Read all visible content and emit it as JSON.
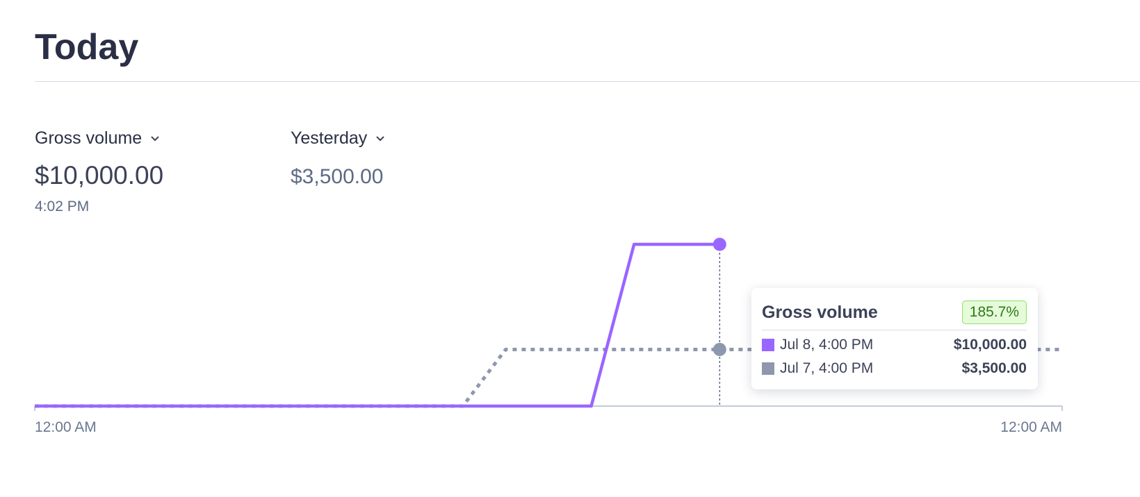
{
  "header": {
    "title": "Today"
  },
  "metrics": [
    {
      "label": "Gross volume",
      "value": "$10,000.00",
      "time": "4:02 PM"
    },
    {
      "label": "Yesterday",
      "value": "$3,500.00"
    }
  ],
  "chart_data": {
    "type": "line",
    "xlim": [
      0,
      24
    ],
    "xticks": [
      {
        "value": 0,
        "label": "12:00 AM"
      },
      {
        "value": 24,
        "label": "12:00 AM"
      }
    ],
    "ylim": [
      0,
      10000
    ],
    "hover_x": 16,
    "series": [
      {
        "color": "#9966ff",
        "style": "solid",
        "x": [
          0,
          13,
          14,
          16
        ],
        "values": [
          0,
          0,
          10000,
          10000
        ]
      },
      {
        "color": "#8d97ad",
        "style": "dotted",
        "x": [
          0,
          10,
          11,
          24
        ],
        "values": [
          0,
          0,
          3500,
          3500
        ]
      }
    ],
    "tooltip": {
      "title": "Gross volume",
      "change": "185.7%",
      "rows": [
        {
          "label": "Jul 8, 4:00 PM",
          "value": "$10,000.00"
        },
        {
          "label": "Jul 7, 4:00 PM",
          "value": "$3,500.00"
        }
      ]
    }
  }
}
